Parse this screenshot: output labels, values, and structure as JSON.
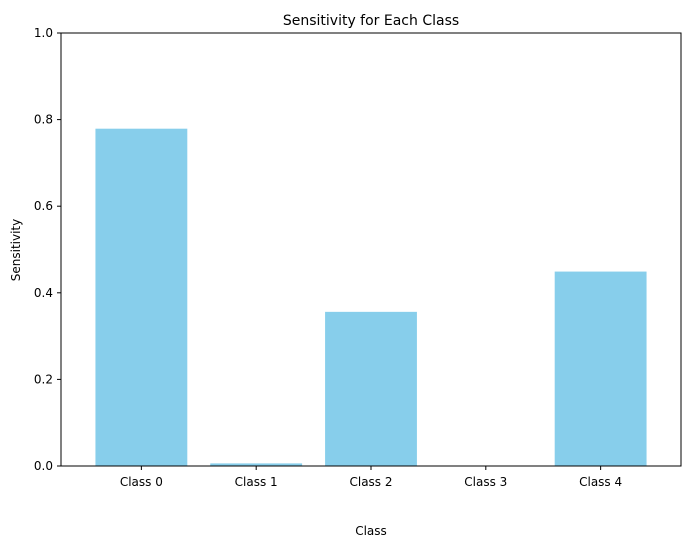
{
  "chart_data": {
    "type": "bar",
    "title": "Sensitivity for Each Class",
    "xlabel": "Class",
    "ylabel": "Sensitivity",
    "categories": [
      "Class 0",
      "Class 1",
      "Class 2",
      "Class 3",
      "Class 4"
    ],
    "values": [
      0.779,
      0.006,
      0.356,
      0.0,
      0.449
    ],
    "ylim": [
      0,
      1.0
    ],
    "yticks": [
      0.0,
      0.2,
      0.4,
      0.6,
      0.8,
      1.0
    ],
    "ytick_labels": [
      "0.0",
      "0.2",
      "0.4",
      "0.6",
      "0.8",
      "1.0"
    ],
    "grid": false,
    "legend": null,
    "bar_color": "#87ceeb"
  }
}
